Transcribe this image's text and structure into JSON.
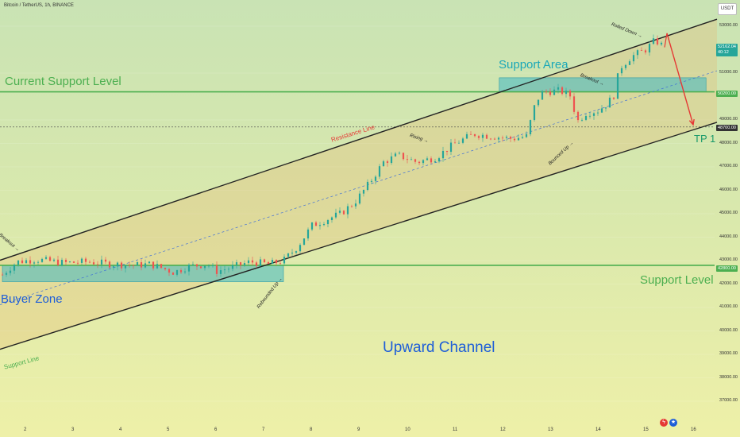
{
  "header": {
    "symbol": "Bitcoin / TetherUS, 1h, BINANCE",
    "currency": "USDT"
  },
  "price_axis": {
    "ticks": [
      "53000.00",
      "51000.00",
      "49000.00",
      "48000.00",
      "47000.00",
      "46000.00",
      "45000.00",
      "44000.00",
      "43000.00",
      "42000.00",
      "41000.00",
      "40000.00",
      "39000.00",
      "38000.00",
      "37000.00"
    ],
    "current_price": "52162.04",
    "countdown": "40:12",
    "level_50200": "50200.00",
    "level_48700": "48700.00",
    "level_42800": "42800.00",
    "colors": {
      "current": "#26a69a",
      "level_50200": "#4caf50",
      "level_48700": "#333333",
      "level_42800": "#4caf50"
    }
  },
  "time_axis": {
    "ticks": [
      "2",
      "3",
      "4",
      "5",
      "6",
      "7",
      "8",
      "9",
      "10",
      "11",
      "12",
      "13",
      "14",
      "15",
      "16"
    ]
  },
  "annotations": {
    "current_support_level": "Current Support Level",
    "support_area": "Support Area",
    "support_level": "Support Level",
    "buyer_zone": "Buyer Zone",
    "upward_channel": "Upward Channel",
    "tp1": "TP 1",
    "resistance_line": "Resistance Line",
    "support_line": "Support Line",
    "breakout_left": "Breakout",
    "breakout_right": "Breakout",
    "rising": "Rising",
    "rebounded_up": "Rebounded Up",
    "bounced_up": "Bounced Up",
    "rolled_down": "Rolled Down"
  },
  "colors": {
    "up_candle": "#26a69a",
    "down_candle": "#ef5350",
    "zone_fill": "#3fb8c4",
    "level_line": "#4caf50",
    "channel_line": "#222222",
    "arrow": "#e53935"
  },
  "chart_data": {
    "type": "candlestick",
    "symbol": "Bitcoin / TetherUS",
    "interval": "1h",
    "exchange": "BINANCE",
    "x_ticks": [
      "2",
      "3",
      "4",
      "5",
      "6",
      "7",
      "8",
      "9",
      "10",
      "11",
      "12",
      "13",
      "14",
      "15",
      "16"
    ],
    "y_range": [
      36500,
      53600
    ],
    "levels": [
      {
        "label": "50200.00",
        "value": 50200
      },
      {
        "label": "48700.00",
        "value": 48700
      },
      {
        "label": "42800.00",
        "value": 42800
      }
    ],
    "zones": [
      {
        "name": "Buyer Zone",
        "x_from": 1.5,
        "x_to": 7.4,
        "y_from": 42100,
        "y_to": 42800
      },
      {
        "name": "Support Area",
        "x_from": 11.93,
        "x_to": 16.27,
        "y_from": 50200,
        "y_to": 50800
      }
    ],
    "channel": {
      "resistance": [
        [
          1.5,
          43050
        ],
        [
          16.5,
          53300
        ]
      ],
      "support": [
        [
          1.5,
          39250
        ],
        [
          16.5,
          48900
        ]
      ]
    },
    "price_path": [
      [
        1.5,
        42400
      ],
      [
        1.8,
        42950
      ],
      [
        2.2,
        43050
      ],
      [
        2.8,
        42900
      ],
      [
        3.3,
        42950
      ],
      [
        3.8,
        42850
      ],
      [
        4.3,
        42800
      ],
      [
        4.6,
        42850
      ],
      [
        4.9,
        42650
      ],
      [
        5.1,
        42500
      ],
      [
        5.4,
        42750
      ],
      [
        5.8,
        42850
      ],
      [
        6.0,
        42550
      ],
      [
        6.3,
        42700
      ],
      [
        6.7,
        42950
      ],
      [
        7.1,
        42850
      ],
      [
        7.4,
        43000
      ],
      [
        7.7,
        43600
      ],
      [
        8.0,
        44500
      ],
      [
        8.3,
        44750
      ],
      [
        8.6,
        45000
      ],
      [
        8.9,
        45500
      ],
      [
        9.2,
        46300
      ],
      [
        9.5,
        47200
      ],
      [
        9.8,
        47500
      ],
      [
        10.2,
        47200
      ],
      [
        10.6,
        47400
      ],
      [
        11.0,
        48000
      ],
      [
        11.4,
        48400
      ],
      [
        11.8,
        48300
      ],
      [
        12.2,
        48200
      ],
      [
        12.5,
        48300
      ],
      [
        12.7,
        49800
      ],
      [
        12.85,
        50200
      ],
      [
        13.2,
        50250
      ],
      [
        13.45,
        50000
      ],
      [
        13.55,
        48900
      ],
      [
        13.75,
        49300
      ],
      [
        14.0,
        49400
      ],
      [
        14.2,
        49700
      ],
      [
        14.35,
        50100
      ],
      [
        14.45,
        51200
      ],
      [
        14.7,
        51700
      ],
      [
        15.0,
        52000
      ],
      [
        15.2,
        52400
      ],
      [
        15.4,
        52100
      ]
    ],
    "projection": [
      [
        15.45,
        52700
      ],
      [
        16.0,
        48800
      ]
    ],
    "target_label": "TP 1"
  }
}
